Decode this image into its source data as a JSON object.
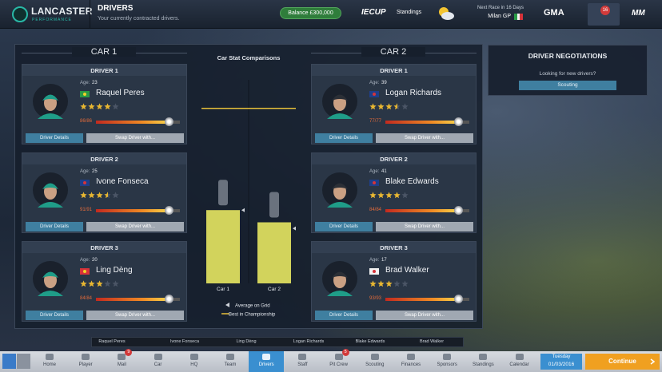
{
  "header": {
    "logo": "LANCASTER",
    "logo_sub": "PERFORMANCE",
    "title": "DRIVERS",
    "subtitle": "Your currently contracted drivers.",
    "balance": "Balance £300,000",
    "series": "IECUP",
    "standings": "Standings",
    "next_race": "Next Race in 16 Days",
    "race_name": "Milan GP",
    "manager": "GMA",
    "notifications": 16,
    "brand": "MM"
  },
  "buttons": {
    "details": "Driver Details",
    "swap": "Swap Driver with..."
  },
  "cars": [
    {
      "title": "CAR 1",
      "drivers": [
        {
          "label": "DRIVER 1",
          "age_label": "Age:",
          "age": 23,
          "name": "Raquel Peres",
          "stars": 4,
          "stat": "86/86"
        },
        {
          "label": "DRIVER 2",
          "age_label": "Age:",
          "age": 25,
          "name": "Ivone Fonseca",
          "stars": 3.5,
          "stat": "91/91"
        },
        {
          "label": "DRIVER 3",
          "age_label": "Age:",
          "age": 20,
          "name": "Ling Dèng",
          "stars": 3,
          "stat": "84/84"
        }
      ]
    },
    {
      "title": "CAR 2",
      "drivers": [
        {
          "label": "DRIVER 1",
          "age_label": "Age:",
          "age": 39,
          "name": "Logan Richards",
          "stars": 3.5,
          "stat": "77/77"
        },
        {
          "label": "DRIVER 2",
          "age_label": "Age:",
          "age": 41,
          "name": "Blake Edwards",
          "stars": 4,
          "stat": "84/84"
        },
        {
          "label": "DRIVER 3",
          "age_label": "Age:",
          "age": 17,
          "name": "Brad Walker",
          "stars": 3,
          "stat": "93/93"
        }
      ]
    }
  ],
  "chart_data": {
    "type": "bar",
    "title": "Car Stat Comparisons",
    "categories": [
      "Car 1",
      "Car 2"
    ],
    "values": [
      36,
      30
    ],
    "color": "#d2d35c",
    "ylim": [
      0,
      100
    ],
    "series": [
      {
        "name": "Average on Grid",
        "color": "#cfd3da",
        "values": [
          36,
          27
        ]
      },
      {
        "name": "Best in Championship",
        "color": "#e8c13a",
        "values": [
          86,
          86
        ]
      }
    ]
  },
  "negotiations": {
    "title": "DRIVER NEGOTIATIONS",
    "text": "Looking for new drivers?",
    "button": "Scouting"
  },
  "tabs": [
    "Raquel Peres",
    "Ivone Fonseca",
    "Ling Dèng",
    "Logan Richards",
    "Blake Edwards",
    "Brad Walker"
  ],
  "nav": [
    {
      "label": "Home"
    },
    {
      "label": "Player"
    },
    {
      "label": "Mail",
      "badge": 9
    },
    {
      "label": "Car"
    },
    {
      "label": "HQ"
    },
    {
      "label": "Team"
    },
    {
      "label": "Drivers",
      "active": true
    },
    {
      "label": "Staff"
    },
    {
      "label": "Pit Crew",
      "badge": 5
    },
    {
      "label": "Scouting"
    },
    {
      "label": "Finances"
    },
    {
      "label": "Sponsors"
    },
    {
      "label": "Standings"
    },
    {
      "label": "Calendar"
    }
  ],
  "date": {
    "day": "Tuesday",
    "date": "01/03/2016"
  },
  "continue": "Continue"
}
